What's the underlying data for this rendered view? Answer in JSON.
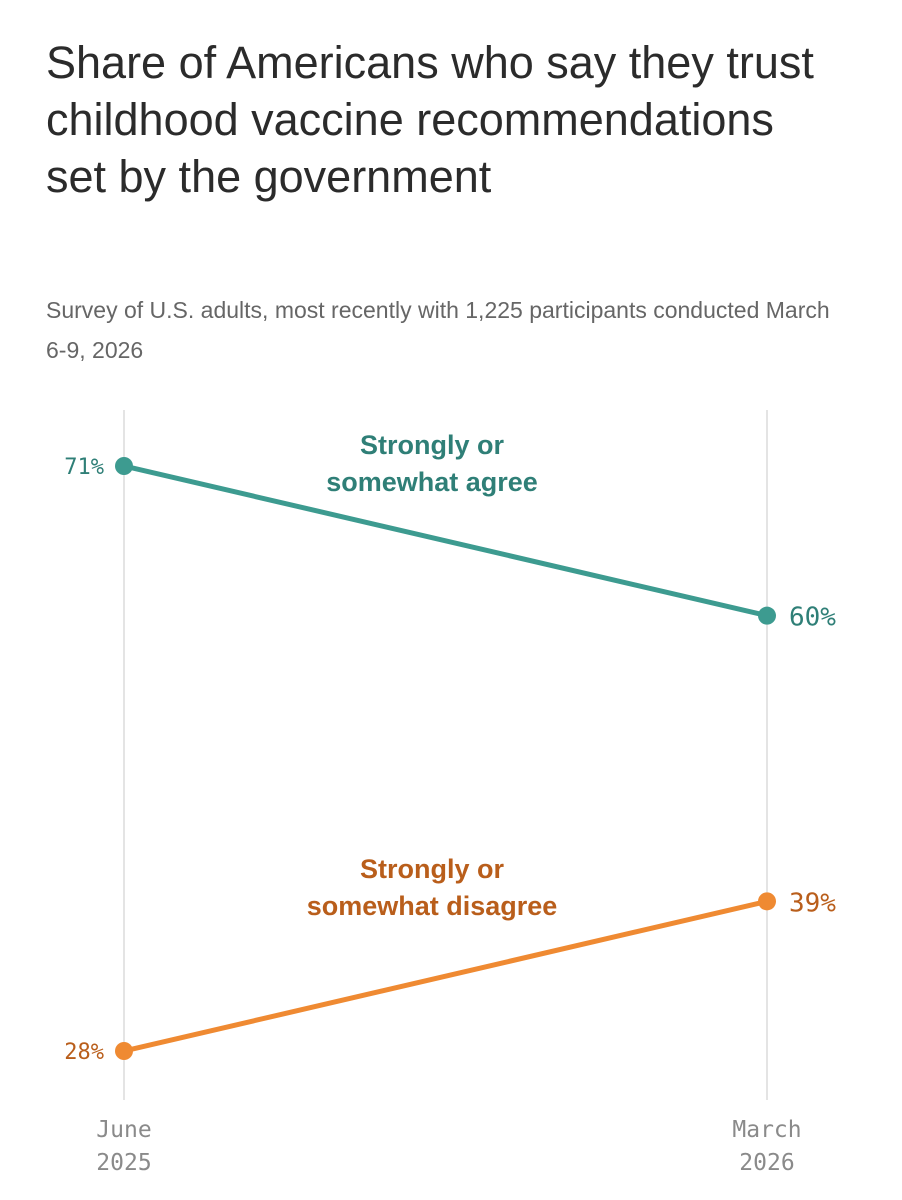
{
  "header": {
    "title": "Share of Americans who say they trust childhood vaccine recommendations set by the government",
    "subtitle": "Survey of U.S. adults, most recently with 1,225 participants conducted March 6-9, 2026"
  },
  "chart_data": {
    "type": "line",
    "title": "Share of Americans who say they trust childhood vaccine recommendations set by the government",
    "subtitle": "Survey of U.S. adults, most recently with 1,225 participants conducted March 6-9, 2026",
    "categories": [
      {
        "month": "June",
        "year": "2025"
      },
      {
        "month": "March",
        "year": "2026"
      }
    ],
    "series": [
      {
        "name": "Strongly or somewhat agree",
        "label_lines": [
          "Strongly or",
          "somewhat agree"
        ],
        "values": [
          71,
          60
        ],
        "value_labels": [
          "71%",
          "60%"
        ],
        "color": "#3d9b90",
        "label_color": "#2f7f77"
      },
      {
        "name": "Strongly or somewhat disagree",
        "label_lines": [
          "Strongly or",
          "somewhat disagree"
        ],
        "values": [
          28,
          39
        ],
        "value_labels": [
          "28%",
          "39%"
        ],
        "color": "#ef8a32",
        "label_color": "#b95e1b"
      }
    ],
    "ylim": [
      28,
      71
    ],
    "grid": "vertical lines at each date",
    "xlabel": "",
    "ylabel": ""
  }
}
